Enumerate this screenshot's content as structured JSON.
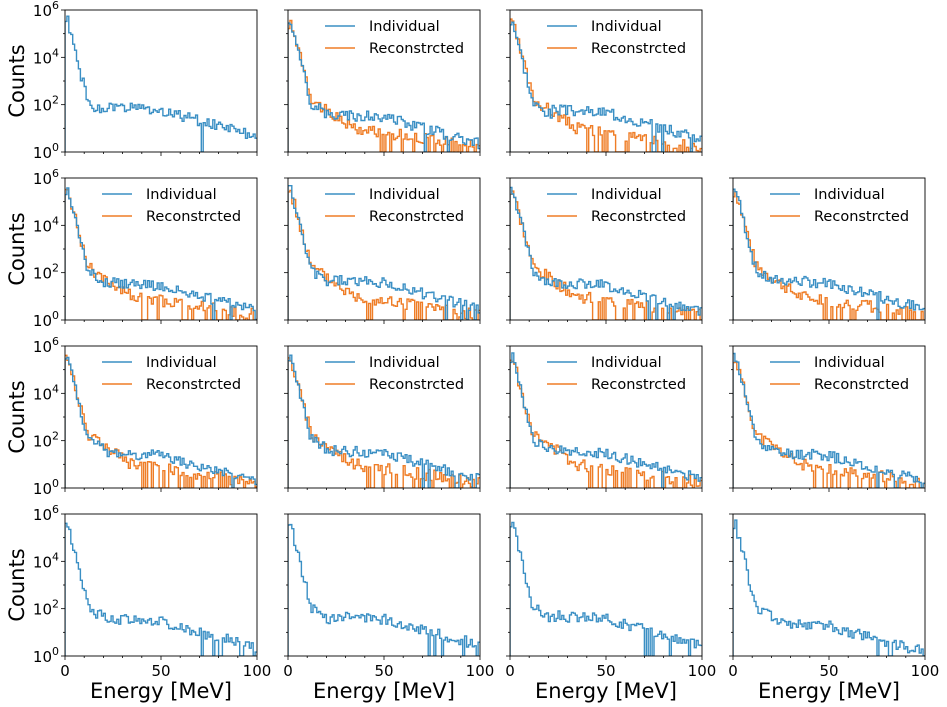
{
  "figure": {
    "ylabel": "Counts",
    "xlabel": "Energy [MeV]"
  },
  "legend": {
    "individual": "Individual",
    "reconstructed": "Reconstrcted"
  },
  "colors": {
    "individual": "#3a8fc4",
    "reconstructed": "#ef7d26",
    "axis": "#000000"
  },
  "chart_data": {
    "type": "histogram",
    "yscale": "log",
    "xlim": [
      0,
      100
    ],
    "ylim_exponent": [
      0,
      6
    ],
    "x_ticks": [
      "0",
      "50",
      "100"
    ],
    "y_ticks": [
      "10^0",
      "10^2",
      "10^4",
      "10^6"
    ],
    "series_names": [
      "Individual",
      "Reconstrcted"
    ],
    "grid": [
      [
        {
          "individual": true,
          "reconstructed": false,
          "tail": 1.9,
          "seed": 1
        },
        {
          "individual": true,
          "reconstructed": true,
          "tail": 1.6,
          "seed": 2
        },
        {
          "individual": true,
          "reconstructed": true,
          "tail": 1.8,
          "seed": 3
        },
        null
      ],
      [
        {
          "individual": true,
          "reconstructed": true,
          "tail": 1.6,
          "seed": 4
        },
        {
          "individual": true,
          "reconstructed": true,
          "tail": 1.7,
          "seed": 5
        },
        {
          "individual": true,
          "reconstructed": true,
          "tail": 1.6,
          "seed": 6
        },
        {
          "individual": true,
          "reconstructed": true,
          "tail": 1.7,
          "seed": 7
        }
      ],
      [
        {
          "individual": true,
          "reconstructed": true,
          "tail": 1.5,
          "seed": 8
        },
        {
          "individual": true,
          "reconstructed": true,
          "tail": 1.6,
          "seed": 9
        },
        {
          "individual": true,
          "reconstructed": true,
          "tail": 1.6,
          "seed": 10
        },
        {
          "individual": true,
          "reconstructed": true,
          "tail": 1.5,
          "seed": 11
        }
      ],
      [
        {
          "individual": true,
          "reconstructed": false,
          "tail": 1.6,
          "seed": 12
        },
        {
          "individual": true,
          "reconstructed": false,
          "tail": 1.7,
          "seed": 13
        },
        {
          "individual": true,
          "reconstructed": false,
          "tail": 1.7,
          "seed": 14
        },
        {
          "individual": true,
          "reconstructed": false,
          "tail": 1.4,
          "seed": 15
        }
      ]
    ]
  }
}
